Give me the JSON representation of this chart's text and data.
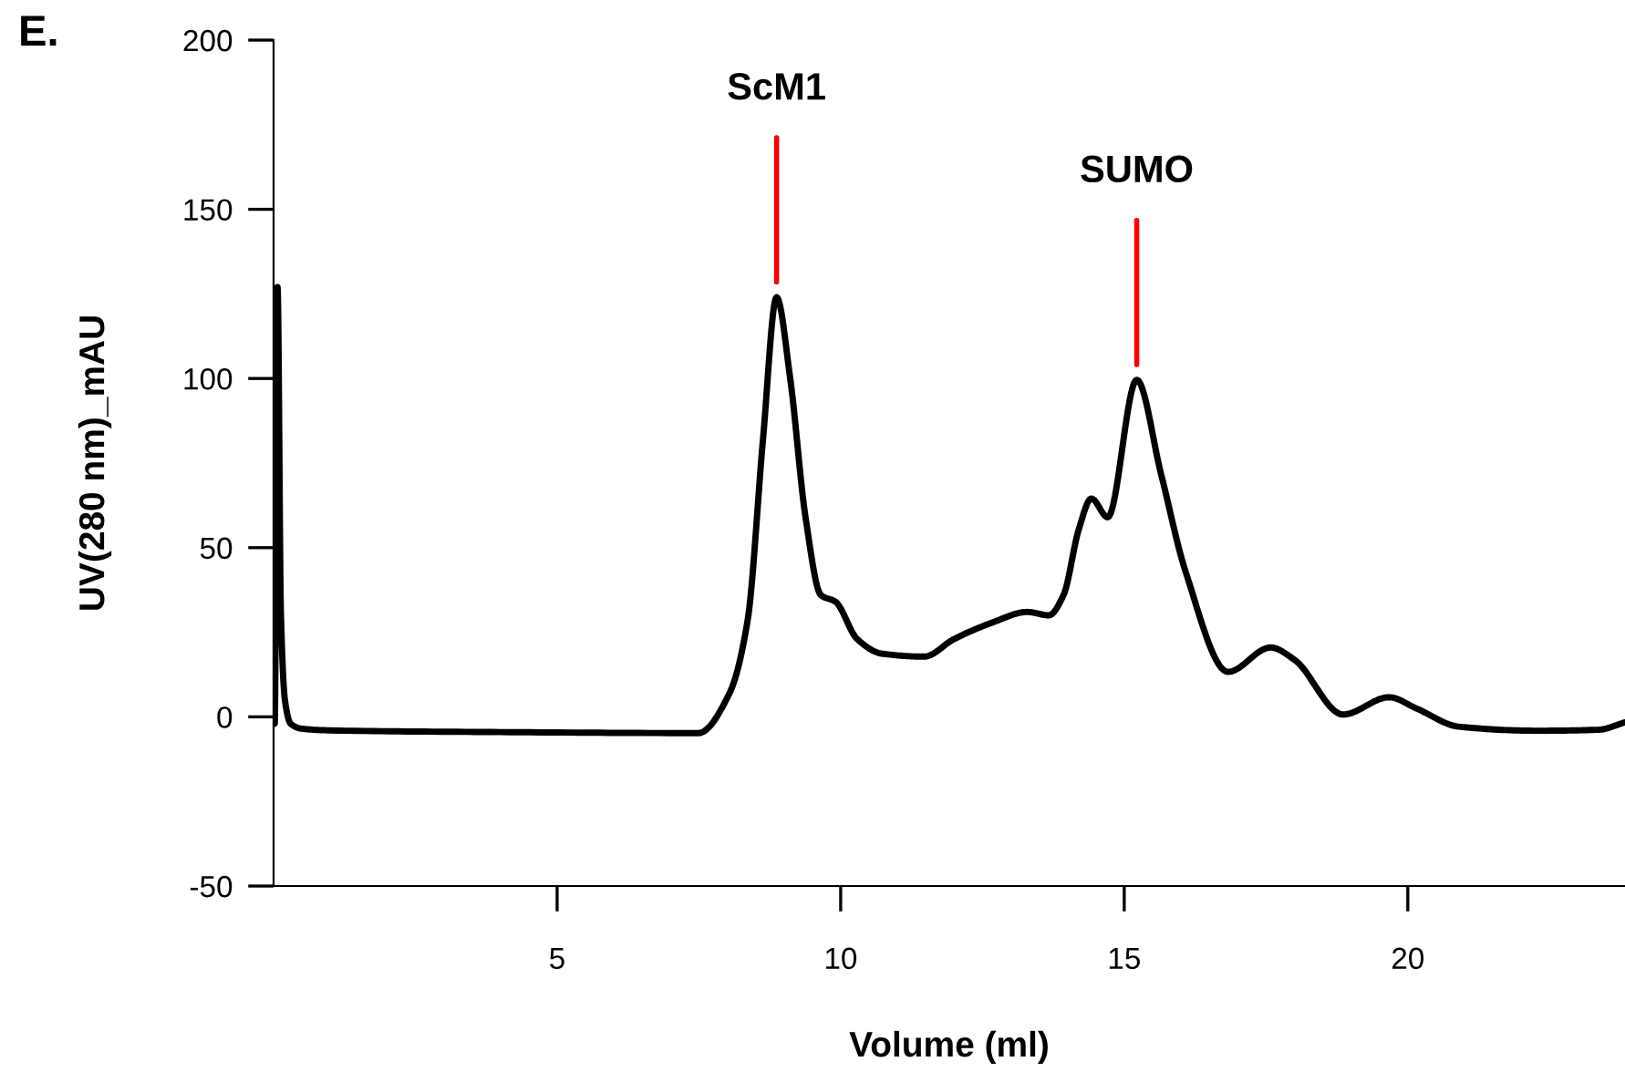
{
  "chart_data": {
    "type": "line",
    "title": "E.",
    "xlabel": "Volume (ml)",
    "ylabel": "UV(280 nm)_mAU",
    "xlim": [
      0,
      23.83
    ],
    "ylim": [
      -50,
      200
    ],
    "xticks": [
      5,
      10,
      15,
      20
    ],
    "yticks": [
      -50,
      0,
      50,
      100,
      150,
      200
    ],
    "grid": false,
    "legend": false,
    "marker": "none",
    "line_style": "solid",
    "series": [
      {
        "color": "#000000",
        "x": [
          0.0,
          0.02,
          0.07,
          0.13,
          0.2,
          0.3,
          0.5,
          1.0,
          4.0,
          7.49,
          8.04,
          8.36,
          8.63,
          8.87,
          9.11,
          9.38,
          9.65,
          9.91,
          10.29,
          10.72,
          11.47,
          12.0,
          12.65,
          13.29,
          13.67,
          13.93,
          14.2,
          14.42,
          14.71,
          15.22,
          15.65,
          16.08,
          16.83,
          17.58,
          18.0,
          18.86,
          19.67,
          20.15,
          20.9,
          22.29,
          23.37,
          23.83
        ],
        "values": [
          0,
          -2,
          127,
          30,
          5,
          -2,
          -3.5,
          -4,
          -4.5,
          -4.8,
          7,
          28.6,
          82,
          124,
          100,
          59,
          36,
          34,
          23,
          18.7,
          17.8,
          23,
          27.7,
          31,
          30,
          36,
          55.5,
          64.5,
          59,
          99.6,
          71.7,
          43,
          13.3,
          20.5,
          16.9,
          0.7,
          5.8,
          2.5,
          -2.9,
          -4.1,
          -3.8,
          -1.6
        ]
      }
    ],
    "annotations": [
      {
        "text": "ScM1",
        "x": 8.87,
        "y": 124
      },
      {
        "text": "SUMO",
        "x": 15.22,
        "y": 99.6
      }
    ]
  }
}
